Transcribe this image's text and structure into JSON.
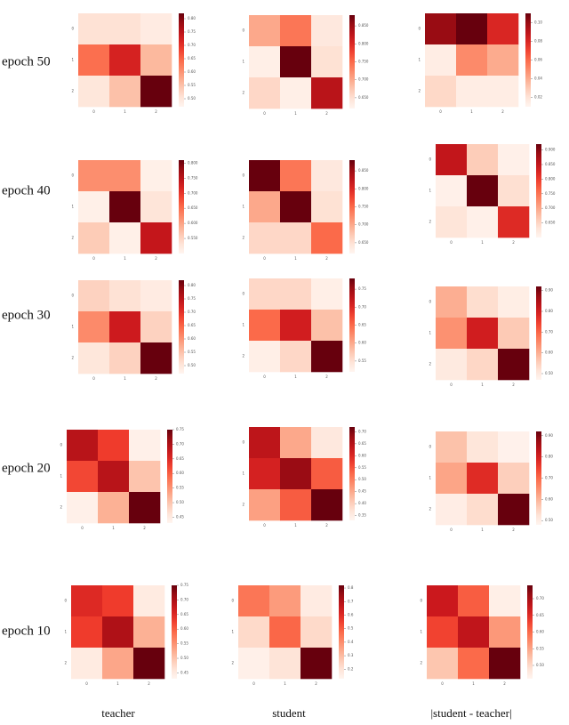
{
  "row_labels": [
    "epoch 50",
    "epoch 40",
    "epoch 30",
    "epoch 20",
    "epoch 10"
  ],
  "column_labels": [
    "teacher",
    "student",
    "|student - teacher|"
  ],
  "chart_data": [
    {
      "type": "heatmap",
      "colormap": "Reds",
      "x": [
        "0",
        "1",
        "2"
      ],
      "y": [
        "0",
        "1",
        "2"
      ],
      "clim": [
        0.47,
        0.82
      ],
      "values": [
        [
          0.51,
          0.51,
          0.49
        ],
        [
          0.64,
          0.72,
          0.56
        ],
        [
          0.5,
          0.55,
          0.82
        ]
      ],
      "cticks": [
        {
          "value": 0.5,
          "label": "0.50"
        },
        {
          "value": 0.55,
          "label": "0.55"
        },
        {
          "value": 0.6,
          "label": "0.60"
        },
        {
          "value": 0.65,
          "label": "0.65"
        },
        {
          "value": 0.7,
          "label": "0.70"
        },
        {
          "value": 0.75,
          "label": "0.75"
        },
        {
          "value": 0.8,
          "label": "0.80"
        }
      ]
    },
    {
      "type": "heatmap",
      "colormap": "Reds",
      "x": [
        "0",
        "1",
        "2"
      ],
      "y": [
        "0",
        "1",
        "2"
      ],
      "clim": [
        0.62,
        0.88
      ],
      "values": [
        [
          0.7,
          0.74,
          0.64
        ],
        [
          0.63,
          0.88,
          0.65
        ],
        [
          0.66,
          0.63,
          0.83
        ]
      ],
      "cticks": [
        {
          "value": 0.65,
          "label": "0.650"
        },
        {
          "value": 0.7,
          "label": "0.700"
        },
        {
          "value": 0.75,
          "label": "0.750"
        },
        {
          "value": 0.8,
          "label": "0.800"
        },
        {
          "value": 0.85,
          "label": "0.850"
        }
      ]
    },
    {
      "type": "heatmap",
      "colormap": "Reds",
      "x": [
        "0",
        "1",
        "2"
      ],
      "y": [
        "0",
        "1",
        "2"
      ],
      "clim": [
        0.01,
        0.11
      ],
      "values": [
        [
          0.1,
          0.11,
          0.08
        ],
        [
          0.015,
          0.05,
          0.04
        ],
        [
          0.025,
          0.015,
          0.015
        ]
      ],
      "cticks": [
        0.02,
        0.04,
        0.06,
        0.08,
        {
          "value": 0.1,
          "label": "0.10"
        }
      ]
    },
    {
      "type": "heatmap",
      "colormap": "Reds",
      "x": [
        "0",
        "1",
        "2"
      ],
      "y": [
        "0",
        "1",
        "2"
      ],
      "clim": [
        0.5,
        0.81
      ],
      "values": [
        [
          0.62,
          0.62,
          0.51
        ],
        [
          0.51,
          0.81,
          0.53
        ],
        [
          0.56,
          0.51,
          0.74
        ]
      ],
      "cticks": [
        {
          "value": 0.55,
          "label": "0.550"
        },
        {
          "value": 0.6,
          "label": "0.600"
        },
        {
          "value": 0.65,
          "label": "0.650"
        },
        {
          "value": 0.7,
          "label": "0.700"
        },
        {
          "value": 0.75,
          "label": "0.750"
        },
        {
          "value": 0.8,
          "label": "0.800"
        }
      ]
    },
    {
      "type": "heatmap",
      "colormap": "Reds",
      "x": [
        "0",
        "1",
        "2"
      ],
      "y": [
        "0",
        "1",
        "2"
      ],
      "clim": [
        0.62,
        0.88
      ],
      "values": [
        [
          0.88,
          0.74,
          0.64
        ],
        [
          0.7,
          0.88,
          0.65
        ],
        [
          0.66,
          0.66,
          0.75
        ]
      ],
      "cticks": [
        {
          "value": 0.65,
          "label": "0.650"
        },
        {
          "value": 0.7,
          "label": "0.700"
        },
        {
          "value": 0.75,
          "label": "0.750"
        },
        {
          "value": 0.8,
          "label": "0.800"
        },
        {
          "value": 0.85,
          "label": "0.850"
        }
      ]
    },
    {
      "type": "heatmap",
      "colormap": "Reds",
      "x": [
        "0",
        "1",
        "2"
      ],
      "y": [
        "0",
        "1",
        "2"
      ],
      "clim": [
        0.6,
        0.92
      ],
      "values": [
        [
          0.85,
          0.66,
          0.61
        ],
        [
          0.61,
          0.92,
          0.64
        ],
        [
          0.63,
          0.61,
          0.82
        ]
      ],
      "cticks": [
        {
          "value": 0.65,
          "label": "0.650"
        },
        {
          "value": 0.7,
          "label": "0.700"
        },
        {
          "value": 0.75,
          "label": "0.750"
        },
        {
          "value": 0.8,
          "label": "0.800"
        },
        {
          "value": 0.85,
          "label": "0.850"
        },
        {
          "value": 0.9,
          "label": "0.900"
        }
      ]
    },
    {
      "type": "heatmap",
      "colormap": "Reds",
      "x": [
        "0",
        "1",
        "2"
      ],
      "y": [
        "0",
        "1",
        "2"
      ],
      "clim": [
        0.47,
        0.82
      ],
      "values": [
        [
          0.53,
          0.51,
          0.49
        ],
        [
          0.61,
          0.73,
          0.53
        ],
        [
          0.5,
          0.53,
          0.82
        ]
      ],
      "cticks": [
        {
          "value": 0.5,
          "label": "0.50"
        },
        {
          "value": 0.55,
          "label": "0.55"
        },
        {
          "value": 0.6,
          "label": "0.60"
        },
        {
          "value": 0.65,
          "label": "0.65"
        },
        {
          "value": 0.7,
          "label": "0.70"
        },
        {
          "value": 0.75,
          "label": "0.75"
        },
        {
          "value": 0.8,
          "label": "0.80"
        }
      ]
    },
    {
      "type": "heatmap",
      "colormap": "Reds",
      "x": [
        "0",
        "1",
        "2"
      ],
      "y": [
        "0",
        "1",
        "2"
      ],
      "clim": [
        0.52,
        0.78
      ],
      "values": [
        [
          0.56,
          0.56,
          0.53
        ],
        [
          0.65,
          0.71,
          0.58
        ],
        [
          0.53,
          0.56,
          0.78
        ]
      ],
      "cticks": [
        0.55,
        {
          "value": 0.6,
          "label": "0.60"
        },
        0.65,
        {
          "value": 0.7,
          "label": "0.70"
        },
        0.75
      ]
    },
    {
      "type": "heatmap",
      "colormap": "Reds",
      "x": [
        "0",
        "1",
        "2"
      ],
      "y": [
        "0",
        "1",
        "2"
      ],
      "clim": [
        0.47,
        0.92
      ],
      "values": [
        [
          0.6,
          0.53,
          0.49
        ],
        [
          0.64,
          0.8,
          0.56
        ],
        [
          0.5,
          0.54,
          0.92
        ]
      ],
      "cticks": [
        {
          "value": 0.5,
          "label": "0.50"
        },
        {
          "value": 0.6,
          "label": "0.60"
        },
        {
          "value": 0.7,
          "label": "0.70"
        },
        {
          "value": 0.8,
          "label": "0.80"
        },
        {
          "value": 0.9,
          "label": "0.90"
        }
      ]
    },
    {
      "type": "heatmap",
      "colormap": "Reds",
      "x": [
        "0",
        "1",
        "2"
      ],
      "y": [
        "0",
        "1",
        "2"
      ],
      "clim": [
        0.43,
        0.75
      ],
      "values": [
        [
          0.69,
          0.63,
          0.44
        ],
        [
          0.62,
          0.69,
          0.5
        ],
        [
          0.44,
          0.52,
          0.75
        ]
      ],
      "cticks": [
        0.45,
        {
          "value": 0.5,
          "label": "0.50"
        },
        0.55,
        {
          "value": 0.6,
          "label": "0.60"
        },
        0.65,
        {
          "value": 0.7,
          "label": "0.70"
        },
        0.75
      ]
    },
    {
      "type": "heatmap",
      "colormap": "Reds",
      "x": [
        "0",
        "1",
        "2"
      ],
      "y": [
        "0",
        "1",
        "2"
      ],
      "clim": [
        0.33,
        0.72
      ],
      "values": [
        [
          0.64,
          0.45,
          0.36
        ],
        [
          0.61,
          0.68,
          0.54
        ],
        [
          0.46,
          0.54,
          0.72
        ]
      ],
      "cticks": [
        0.35,
        {
          "value": 0.4,
          "label": "0.40"
        },
        0.45,
        {
          "value": 0.5,
          "label": "0.50"
        },
        0.55,
        {
          "value": 0.6,
          "label": "0.60"
        },
        0.65,
        {
          "value": 0.7,
          "label": "0.70"
        }
      ]
    },
    {
      "type": "heatmap",
      "colormap": "Reds",
      "x": [
        "0",
        "1",
        "2"
      ],
      "y": [
        "0",
        "1",
        "2"
      ],
      "clim": [
        0.48,
        0.92
      ],
      "values": [
        [
          0.58,
          0.52,
          0.49
        ],
        [
          0.62,
          0.78,
          0.56
        ],
        [
          0.5,
          0.54,
          0.92
        ]
      ],
      "cticks": [
        {
          "value": 0.5,
          "label": "0.50"
        },
        {
          "value": 0.6,
          "label": "0.60"
        },
        {
          "value": 0.7,
          "label": "0.70"
        },
        {
          "value": 0.8,
          "label": "0.80"
        },
        {
          "value": 0.9,
          "label": "0.90"
        }
      ]
    },
    {
      "type": "heatmap",
      "colormap": "Reds",
      "x": [
        "0",
        "1",
        "2"
      ],
      "y": [
        "0",
        "1",
        "2"
      ],
      "clim": [
        0.43,
        0.75
      ],
      "values": [
        [
          0.65,
          0.63,
          0.45
        ],
        [
          0.63,
          0.7,
          0.52
        ],
        [
          0.45,
          0.53,
          0.75
        ]
      ],
      "cticks": [
        0.45,
        {
          "value": 0.5,
          "label": "0.50"
        },
        0.55,
        {
          "value": 0.6,
          "label": "0.60"
        },
        0.65,
        {
          "value": 0.7,
          "label": "0.70"
        },
        0.75
      ]
    },
    {
      "type": "heatmap",
      "colormap": "Reds",
      "x": [
        "0",
        "1",
        "2"
      ],
      "y": [
        "0",
        "1",
        "2"
      ],
      "clim": [
        0.13,
        0.82
      ],
      "values": [
        [
          0.45,
          0.37,
          0.17
        ],
        [
          0.23,
          0.48,
          0.23
        ],
        [
          0.15,
          0.2,
          0.82
        ]
      ],
      "cticks": [
        0.2,
        0.3,
        0.4,
        0.5,
        0.6,
        0.7,
        0.8
      ]
    },
    {
      "type": "heatmap",
      "colormap": "Reds",
      "x": [
        "0",
        "1",
        "2"
      ],
      "y": [
        "0",
        "1",
        "2"
      ],
      "clim": [
        0.46,
        0.74
      ],
      "values": [
        [
          0.67,
          0.61,
          0.47
        ],
        [
          0.63,
          0.68,
          0.56
        ],
        [
          0.52,
          0.6,
          0.74
        ]
      ],
      "cticks": [
        {
          "value": 0.5,
          "label": "0.50"
        },
        0.55,
        {
          "value": 0.6,
          "label": "0.60"
        },
        0.65,
        {
          "value": 0.7,
          "label": "0.70"
        }
      ]
    }
  ]
}
